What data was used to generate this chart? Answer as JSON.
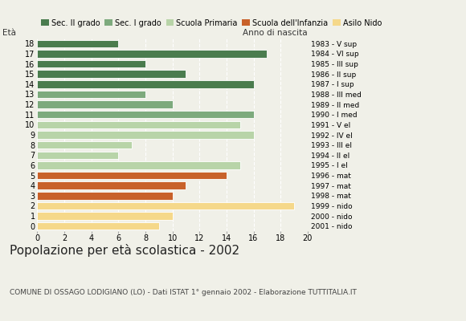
{
  "ages": [
    18,
    17,
    16,
    15,
    14,
    13,
    12,
    11,
    10,
    9,
    8,
    7,
    6,
    5,
    4,
    3,
    2,
    1,
    0
  ],
  "values": [
    6,
    17,
    8,
    11,
    16,
    8,
    10,
    16,
    15,
    16,
    7,
    6,
    15,
    14,
    11,
    10,
    19,
    10,
    9
  ],
  "right_labels": [
    "1983 - V sup",
    "1984 - VI sup",
    "1985 - III sup",
    "1986 - II sup",
    "1987 - I sup",
    "1988 - III med",
    "1989 - II med",
    "1990 - I med",
    "1991 - V el",
    "1992 - IV el",
    "1993 - III el",
    "1994 - II el",
    "1995 - I el",
    "1996 - mat",
    "1997 - mat",
    "1998 - mat",
    "1999 - nido",
    "2000 - nido",
    "2001 - nido"
  ],
  "bar_colors": [
    "#4a7c4e",
    "#4a7c4e",
    "#4a7c4e",
    "#4a7c4e",
    "#4a7c4e",
    "#7daa7d",
    "#7daa7d",
    "#7daa7d",
    "#b8d4a8",
    "#b8d4a8",
    "#b8d4a8",
    "#b8d4a8",
    "#b8d4a8",
    "#c8612a",
    "#c8612a",
    "#c8612a",
    "#f5d88a",
    "#f5d88a",
    "#f5d88a"
  ],
  "legend_labels": [
    "Sec. II grado",
    "Sec. I grado",
    "Scuola Primaria",
    "Scuola dell'Infanzia",
    "Asilo Nido"
  ],
  "legend_colors": [
    "#4a7c4e",
    "#7daa7d",
    "#b8d4a8",
    "#c8612a",
    "#f5d88a"
  ],
  "title": "Popolazione per età scolastica - 2002",
  "subtitle": "COMUNE DI OSSAGO LODIGIANO (LO) - Dati ISTAT 1° gennaio 2002 - Elaborazione TUTTITALIA.IT",
  "xlim": [
    0,
    20
  ],
  "xticks": [
    0,
    2,
    4,
    6,
    8,
    10,
    12,
    14,
    16,
    18,
    20
  ],
  "background_color": "#f0f0e8",
  "tick_fontsize": 7,
  "legend_fontsize": 7,
  "label_fontsize": 7.5,
  "title_fontsize": 11,
  "subtitle_fontsize": 6.5
}
